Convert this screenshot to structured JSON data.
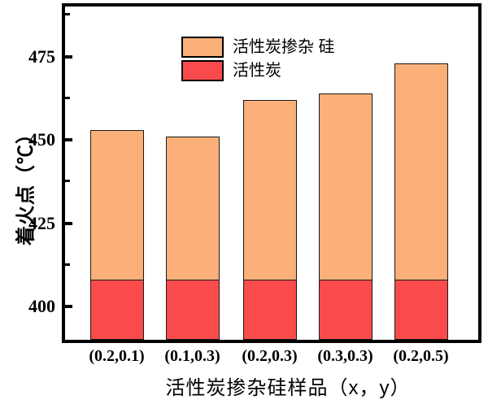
{
  "chart_data": {
    "type": "bar",
    "mode": "overlay-stacked",
    "title": "",
    "xlabel": "活性炭掺杂硅样品（x，y）",
    "ylabel": "着火点（℃）",
    "categories": [
      "(0.2,0.1)",
      "(0.1,0.3)",
      "(0.2,0.3)",
      "(0.3,0.3)",
      "(0.2,0.5)"
    ],
    "series": [
      {
        "name": "活性炭掺杂 硅",
        "color": "#FAB078",
        "values": [
          453,
          451,
          462,
          464,
          473
        ]
      },
      {
        "name": "活性炭",
        "color": "#F94B4B",
        "values": [
          408,
          408,
          408,
          408,
          408
        ]
      }
    ],
    "ylim": [
      390,
      490
    ],
    "yticks_major": [
      400,
      425,
      450,
      475
    ],
    "yticks_minor": [
      412.5,
      437.5,
      462.5,
      487.5
    ],
    "grid": false,
    "legend_position": "top-left-inside",
    "bar_edge_color": "#1a1a1a",
    "axis_color": "#000000",
    "background_color": "#ffffff"
  }
}
